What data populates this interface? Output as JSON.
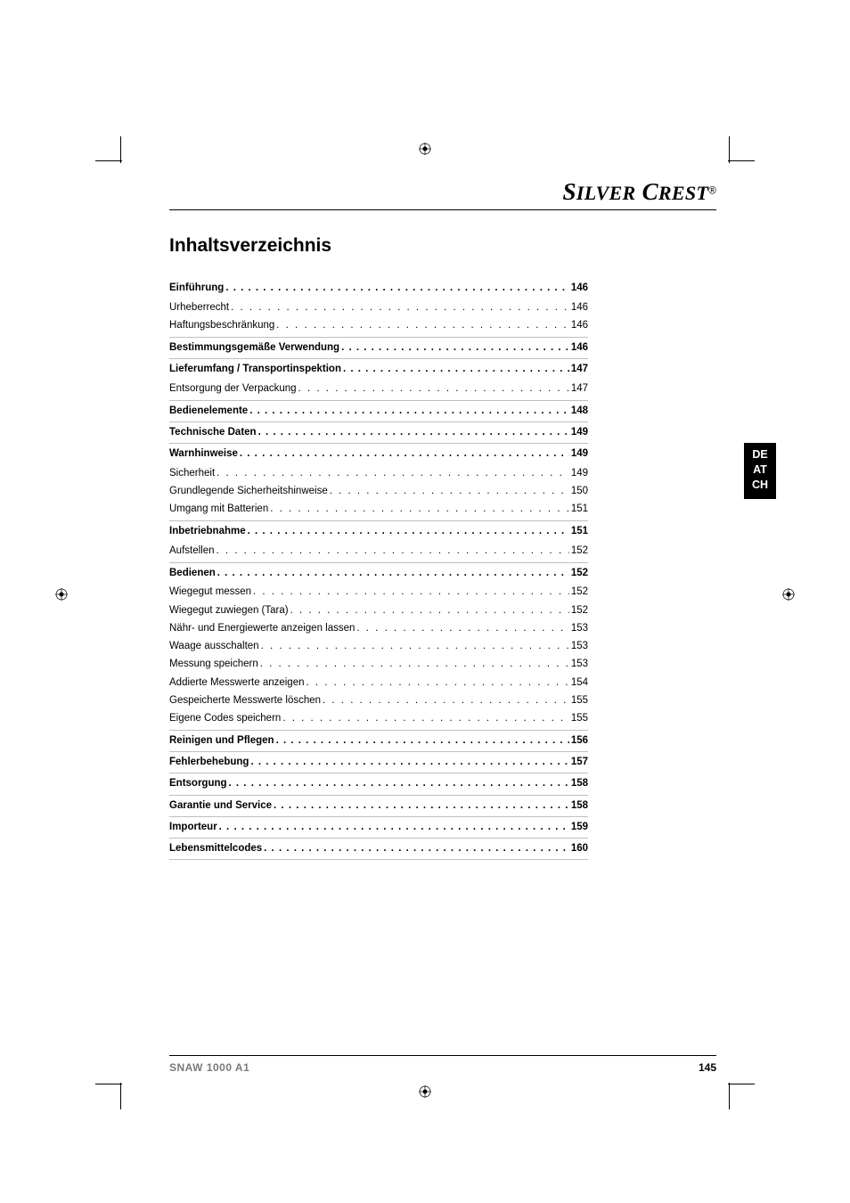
{
  "brand": {
    "name": "SilverCrest",
    "registered": "®"
  },
  "heading": "Inhaltsverzeichnis",
  "locale": [
    "DE",
    "AT",
    "CH"
  ],
  "footer": {
    "model": "SNAW 1000 A1",
    "page": "145"
  },
  "toc": [
    {
      "type": "section",
      "label": "Einführung",
      "page": "146",
      "children": [
        {
          "label": "Urheberrecht",
          "page": "146"
        },
        {
          "label": "Haftungsbeschränkung",
          "page": "146"
        }
      ]
    },
    {
      "type": "section",
      "label": "Bestimmungsgemäße Verwendung",
      "page": "146",
      "children": []
    },
    {
      "type": "section",
      "label": "Lieferumfang / Transportinspektion",
      "page": "147",
      "children": [
        {
          "label": "Entsorgung der Verpackung",
          "page": "147"
        }
      ]
    },
    {
      "type": "section",
      "label": "Bedienelemente",
      "page": "148",
      "children": []
    },
    {
      "type": "section",
      "label": "Technische Daten",
      "page": "149",
      "children": []
    },
    {
      "type": "section",
      "label": "Warnhinweise",
      "page": "149",
      "children": [
        {
          "label": "Sicherheit",
          "page": "149"
        },
        {
          "label": "Grundlegende Sicherheitshinweise",
          "page": "150"
        },
        {
          "label": "Umgang mit Batterien",
          "page": "151"
        }
      ]
    },
    {
      "type": "section",
      "label": "Inbetriebnahme",
      "page": "151",
      "children": [
        {
          "label": "Aufstellen",
          "page": "152"
        }
      ]
    },
    {
      "type": "section",
      "label": "Bedienen",
      "page": "152",
      "children": [
        {
          "label": "Wiegegut messen",
          "page": "152"
        },
        {
          "label": "Wiegegut zuwiegen (Tara)",
          "page": "152"
        },
        {
          "label": "Nähr- und Energiewerte anzeigen lassen",
          "page": "153"
        },
        {
          "label": "Waage ausschalten",
          "page": "153"
        },
        {
          "label": "Messung speichern",
          "page": "153"
        },
        {
          "label": "Addierte Messwerte anzeigen",
          "page": "154"
        },
        {
          "label": "Gespeicherte Messwerte löschen",
          "page": "155"
        },
        {
          "label": "Eigene Codes speichern",
          "page": "155"
        }
      ]
    },
    {
      "type": "section",
      "label": "Reinigen und Pflegen",
      "page": "156",
      "children": []
    },
    {
      "type": "section",
      "label": "Fehlerbehebung",
      "page": "157",
      "children": []
    },
    {
      "type": "section",
      "label": "Entsorgung",
      "page": "158",
      "children": []
    },
    {
      "type": "section",
      "label": "Garantie und Service",
      "page": "158",
      "children": []
    },
    {
      "type": "section",
      "label": "Importeur",
      "page": "159",
      "children": []
    },
    {
      "type": "section",
      "label": "Lebensmittelcodes",
      "page": "160",
      "children": []
    }
  ],
  "leader_dots_section": ". . . . . . . . . . . . . . . . . . . . . . . . . . . . . . . . . . . . . . . . . . . . . . . . . . . . . . . . . . . . . . . . . . . . . . . . . . . . . . . . . . . . . . . . . . . . . . . . . . . . . . . . . . . . . . . . . . .",
  "leader_dots_sub": ". . . . . . . . . . . . . . . . . . . . . . . . . . . . . . . . . . . . . . . . . . . . . . . . . . . . . . . . . . . . . . . . . . . . . . . . . . . . . . . . . . . . . . . . . . . . . . . . . . . . . . . . . . . . . ."
}
